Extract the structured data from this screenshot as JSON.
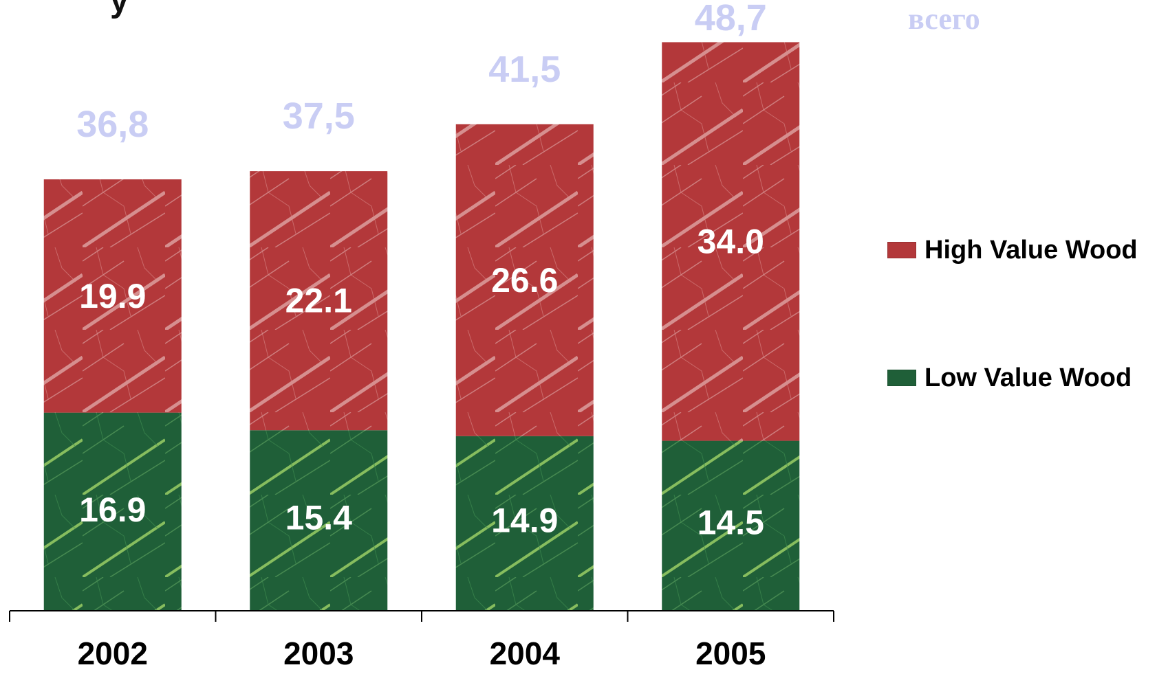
{
  "header": {
    "title_fragment": "у",
    "totals_caption": "всего"
  },
  "colors": {
    "high": "#b3383a",
    "low": "#1f5f38",
    "total_label": "#c9cdf4",
    "axis": "#000000"
  },
  "chart_data": {
    "type": "bar",
    "stacked": true,
    "categories": [
      "2002",
      "2003",
      "2004",
      "2005"
    ],
    "series": [
      {
        "name": "Low Value Wood",
        "values": [
          16.9,
          15.4,
          14.9,
          14.5
        ]
      },
      {
        "name": "High Value Wood",
        "values": [
          19.9,
          22.1,
          26.6,
          34.0
        ]
      }
    ],
    "value_labels": {
      "low": [
        "16.9",
        "15.4",
        "14.9",
        "14.5"
      ],
      "high": [
        "19.9",
        "22.1",
        "26.6",
        "34.0"
      ]
    },
    "totals": [
      "36,8",
      "37,5",
      "41,5",
      "48,7"
    ],
    "total_values": [
      36.8,
      37.5,
      41.5,
      48.7
    ],
    "ylim": [
      0,
      48.7
    ],
    "grid": false,
    "legend_position": "right"
  }
}
